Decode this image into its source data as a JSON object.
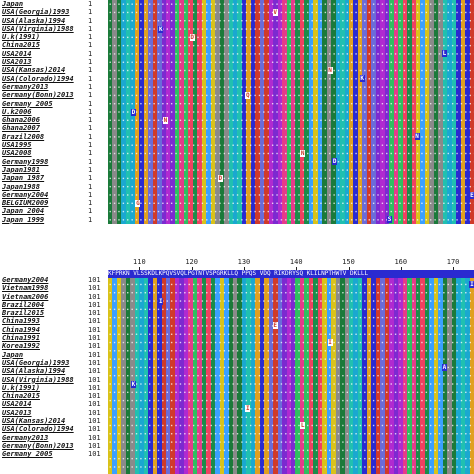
{
  "top": {
    "rows": [
      {
        "label": "Japan",
        "num": "1"
      },
      {
        "label": "USA(Georgia)1993",
        "num": "1"
      },
      {
        "label": "USA(Alaska)1994",
        "num": "1"
      },
      {
        "label": "USA(Virginia)1988",
        "num": "1"
      },
      {
        "label": "U.k(1991)",
        "num": "1"
      },
      {
        "label": "China2015",
        "num": "1"
      },
      {
        "label": "USA2014",
        "num": "1"
      },
      {
        "label": "USA2013",
        "num": "1"
      },
      {
        "label": "USA(Kansas)2014",
        "num": "1"
      },
      {
        "label": "USA(Colorado)1994",
        "num": "1"
      },
      {
        "label": "Germany2013",
        "num": "1"
      },
      {
        "label": "Germany(Bonn)2013",
        "num": "1"
      },
      {
        "label": "Germany 2005",
        "num": "1"
      },
      {
        "label": "U.k2006",
        "num": "1"
      },
      {
        "label": "Ghana2006",
        "num": "1"
      },
      {
        "label": "Ghana2007",
        "num": "1"
      },
      {
        "label": "Brazil2008",
        "num": "1"
      },
      {
        "label": "USA1995",
        "num": "1"
      },
      {
        "label": "USA2008",
        "num": "1"
      },
      {
        "label": "Germany1998",
        "num": "1"
      },
      {
        "label": "Japan1981",
        "num": "1"
      },
      {
        "label": "Japan 1987",
        "num": "1"
      },
      {
        "label": "Japan1988",
        "num": "1"
      },
      {
        "label": "Germany2004",
        "num": "1"
      },
      {
        "label": "BELGIUM2009",
        "num": "1"
      },
      {
        "label": "Japan 2004",
        "num": "1"
      },
      {
        "label": "Japan 1999",
        "num": "1"
      }
    ],
    "marks": [
      "K",
      "N",
      "D",
      "N",
      "E",
      "V",
      "L",
      "Q",
      "N",
      "D",
      "S",
      "DT",
      "K",
      "N",
      "D",
      "G"
    ]
  },
  "bottom": {
    "ruler": [
      "110",
      "120",
      "130",
      "140",
      "150",
      "160",
      "170"
    ],
    "rows": [
      {
        "label": "Germany2004",
        "num": "101"
      },
      {
        "label": "Vietnam1998",
        "num": "101"
      },
      {
        "label": "Vietnam2006",
        "num": "101"
      },
      {
        "label": "Brazil2004",
        "num": "101"
      },
      {
        "label": "Brazil2015",
        "num": "101"
      },
      {
        "label": "China1993",
        "num": "101"
      },
      {
        "label": "China1994",
        "num": "101"
      },
      {
        "label": "China1991",
        "num": "101"
      },
      {
        "label": "Korea1992",
        "num": "101"
      },
      {
        "label": "Japan",
        "num": "101"
      },
      {
        "label": "USA(Georgia)1993",
        "num": "101"
      },
      {
        "label": "USA(Alaska)1994",
        "num": "101"
      },
      {
        "label": "USA(Virginia)1988",
        "num": "101"
      },
      {
        "label": "U.k(1991)",
        "num": "101"
      },
      {
        "label": "China2015",
        "num": "101"
      },
      {
        "label": "USA2014",
        "num": "101"
      },
      {
        "label": "USA2013",
        "num": "101"
      },
      {
        "label": "USA(Kansas)2014",
        "num": "101"
      },
      {
        "label": "USA(Colorado)1994",
        "num": "101"
      },
      {
        "label": "Germany2013",
        "num": "101"
      },
      {
        "label": "Germany(Bonn)2013",
        "num": "101"
      },
      {
        "label": "Germany 2005",
        "num": "101"
      }
    ],
    "consensus": "KFPRKN VLSSKDLKPQVSVQLPGTNTVSPGRKLLQ PPQS VDQ RIKDRYSQ KLILNPTHWTV DKLLL",
    "marks": [
      "I",
      "I",
      "K",
      "L",
      "I",
      "E",
      "A",
      "I"
    ]
  },
  "palette": [
    "#1b7a3a",
    "#e53b8a",
    "#2a2ad0",
    "#d9c21a",
    "#7c2ad0",
    "#1aa8d0",
    "#1b8c4a",
    "#d03a2a",
    "#8a8a8a",
    "#2fbf60",
    "#e0a020",
    "#3aa0ff",
    "#b02ad0",
    "#20c0b0",
    "#f04060",
    "#6b6bd8"
  ]
}
